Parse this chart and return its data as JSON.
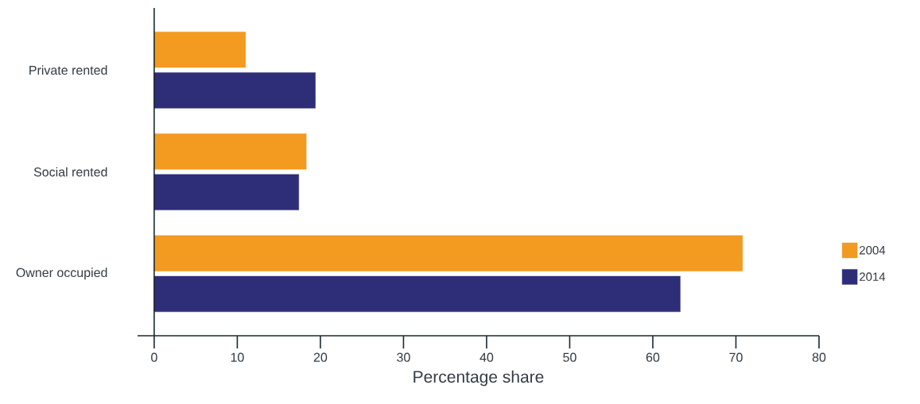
{
  "chart_data": {
    "type": "bar",
    "orientation": "horizontal",
    "xlabel": "Percentage share",
    "categories": [
      "Private rented",
      "Social rented",
      "Owner occupied"
    ],
    "series": [
      {
        "name": "2004",
        "color": "#f39a20",
        "values": [
          11.0,
          18.3,
          70.8
        ]
      },
      {
        "name": "2014",
        "color": "#2e2e78",
        "values": [
          19.4,
          17.4,
          63.3
        ]
      }
    ],
    "xlim": [
      -2,
      80
    ],
    "xticks": [
      0,
      10,
      20,
      30,
      40,
      50,
      60,
      70,
      80
    ],
    "legend": "right"
  }
}
